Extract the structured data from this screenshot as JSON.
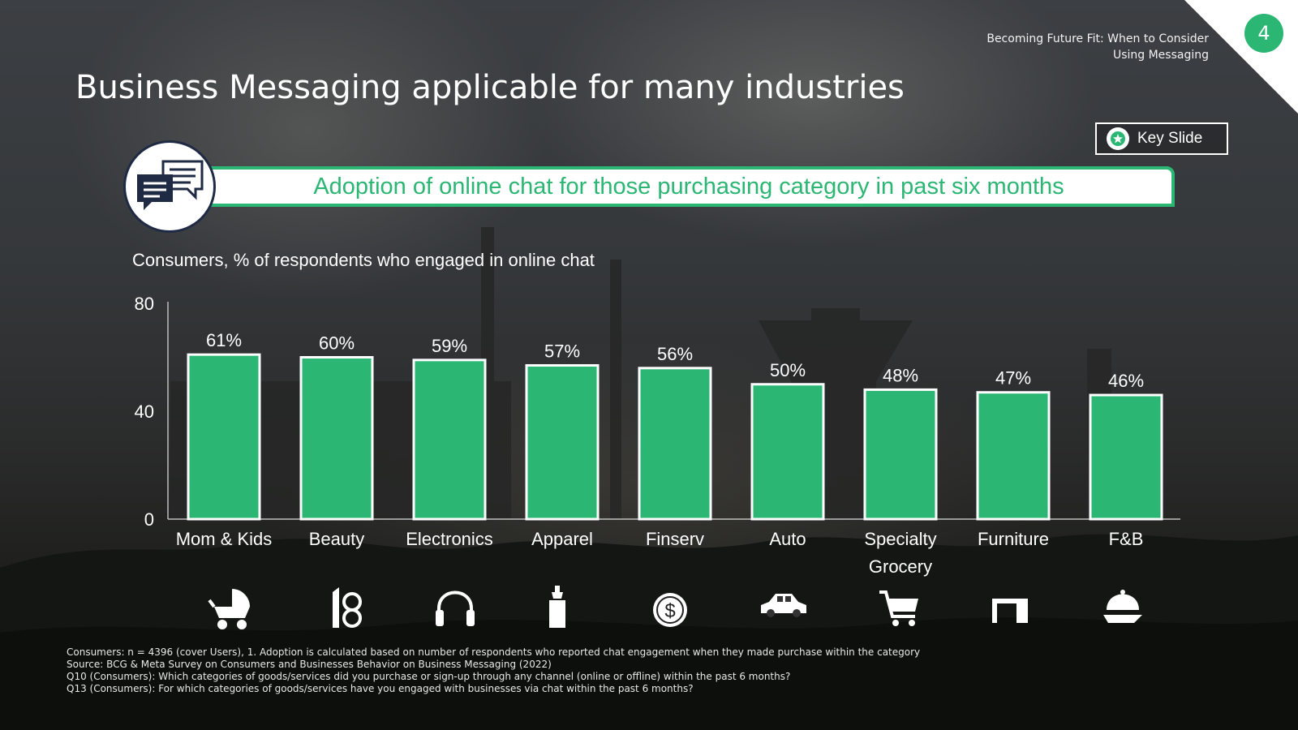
{
  "header": {
    "doc_title_line1": "Becoming Future Fit: When to Consider",
    "doc_title_line2": "Using Messaging",
    "page_number": "4",
    "slide_title": "Business Messaging applicable for many industries"
  },
  "key_slide": {
    "label": "Key Slide",
    "icon": "star-badge-icon"
  },
  "banner": {
    "text": "Adoption of online chat for those purchasing category in past six months",
    "icon": "chat-bubbles-icon"
  },
  "colors": {
    "accent": "#2bb673",
    "navy": "#1f2a44",
    "text": "#ffffff"
  },
  "chart_data": {
    "type": "bar",
    "title": "Adoption of online chat for those purchasing category in past six months",
    "subtitle": "Consumers, % of respondents who engaged in online chat",
    "categories": [
      "Mom & Kids",
      "Beauty",
      "Electronics",
      "Apparel",
      "Finserv",
      "Auto",
      "Specialty Grocery",
      "Furniture",
      "F&B"
    ],
    "category_lines": [
      [
        "Mom & Kids"
      ],
      [
        "Beauty"
      ],
      [
        "Electronics"
      ],
      [
        "Apparel"
      ],
      [
        "Finserv"
      ],
      [
        "Auto"
      ],
      [
        "Specialty",
        "Grocery"
      ],
      [
        "Furniture"
      ],
      [
        "F&B"
      ]
    ],
    "values": [
      61,
      60,
      59,
      57,
      56,
      50,
      48,
      47,
      46
    ],
    "value_labels": [
      "61%",
      "60%",
      "59%",
      "57%",
      "56%",
      "50%",
      "48%",
      "47%",
      "46%"
    ],
    "ylim": [
      0,
      80
    ],
    "yticks": [
      0,
      40,
      80
    ],
    "xlabel": "",
    "ylabel": "",
    "grid": false
  },
  "category_icons": [
    "stroller-icon",
    "lipstick-icon",
    "headphones-icon",
    "perfume-bottle-icon",
    "dollar-coin-icon",
    "car-icon",
    "shopping-cart-icon",
    "desk-icon",
    "food-cloche-icon"
  ],
  "footnotes": [
    "Consumers: n = 4396 (cover Users), 1. Adoption is calculated based on number of respondents who reported chat engagement when they made purchase within the category",
    "Source: BCG & Meta Survey on Consumers and Businesses Behavior on Business Messaging (2022)",
    "Q10 (Consumers): Which categories of goods/services did you purchase or sign-up through any channel (online or offline) within the past 6 months?",
    "Q13 (Consumers): For which categories of goods/services have you engaged with businesses via chat within the past 6 months?"
  ]
}
